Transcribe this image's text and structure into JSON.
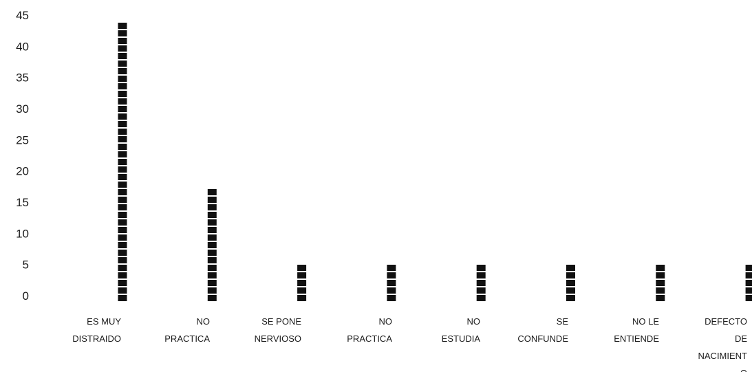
{
  "chart_data": {
    "type": "bar",
    "title": "",
    "xlabel": "",
    "ylabel": "",
    "ylim": [
      0,
      45
    ],
    "yticks": [
      "0",
      "5",
      "10",
      "15",
      "20",
      "25",
      "30",
      "35",
      "40",
      "45"
    ],
    "grid": false,
    "legend": "none",
    "bar_color": "#111111",
    "categories": [
      [
        "ES MUY",
        "DISTRAIDO"
      ],
      [
        "NO",
        "PRACTICA"
      ],
      [
        "SE PONE",
        "NERVIOSO"
      ],
      [
        "NO",
        "PRACTICA"
      ],
      [
        "NO",
        "ESTUDIA"
      ],
      [
        "SE",
        "CONFUNDE"
      ],
      [
        "NO LE",
        "ENTIENDE"
      ],
      [
        "DEFECTO",
        "DE",
        "NACIMIENT",
        "O"
      ]
    ],
    "values": [
      44,
      17,
      5,
      5,
      5,
      5,
      5,
      5
    ]
  }
}
